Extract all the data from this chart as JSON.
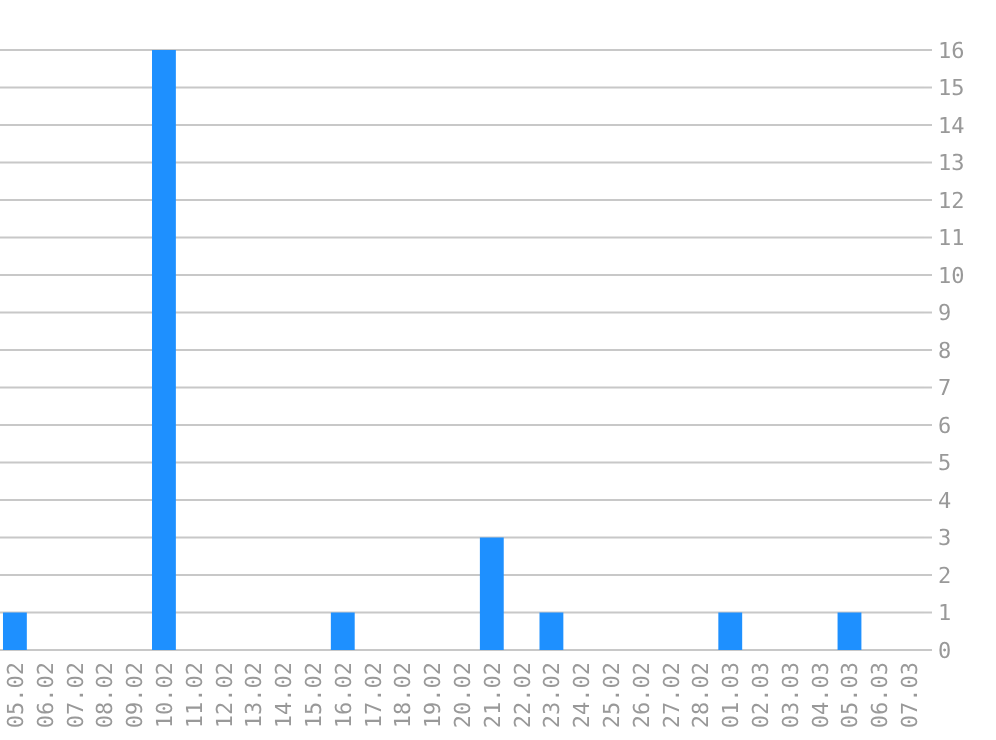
{
  "chart_data": {
    "type": "bar",
    "categories": [
      "05.02",
      "06.02",
      "07.02",
      "08.02",
      "09.02",
      "10.02",
      "11.02",
      "12.02",
      "13.02",
      "14.02",
      "15.02",
      "16.02",
      "17.02",
      "18.02",
      "19.02",
      "20.02",
      "21.02",
      "22.02",
      "23.02",
      "24.02",
      "25.02",
      "26.02",
      "27.02",
      "28.02",
      "01.03",
      "02.03",
      "03.03",
      "04.03",
      "05.03",
      "06.03",
      "07.03"
    ],
    "values": [
      1,
      0,
      0,
      0,
      0,
      16,
      0,
      0,
      0,
      0,
      0,
      1,
      0,
      0,
      0,
      0,
      3,
      0,
      1,
      0,
      0,
      0,
      0,
      0,
      1,
      0,
      0,
      0,
      1,
      0,
      0
    ],
    "color": "#1e90ff",
    "ylim": [
      0,
      16
    ],
    "yticks": [
      0,
      1,
      2,
      3,
      4,
      5,
      6,
      7,
      8,
      9,
      10,
      11,
      12,
      13,
      14,
      15,
      16
    ],
    "grid": "y"
  }
}
